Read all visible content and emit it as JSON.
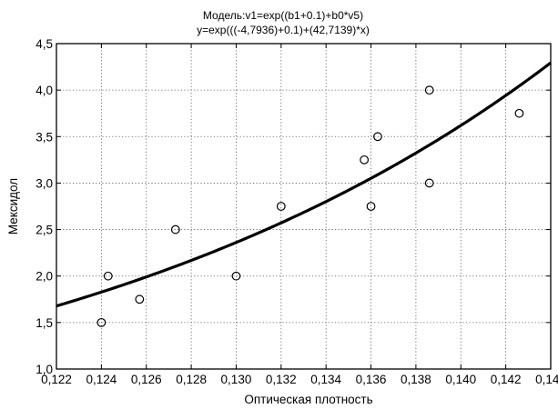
{
  "chart_data": {
    "type": "scatter",
    "title_lines": [
      "Модель:v1=exp((b1+0.1)+b0*v5)",
      "y=exp(((-4,7936)+0.1)+(42,7139)*x)"
    ],
    "xlabel": "Оптическая плотность",
    "ylabel": "Мексидол",
    "xlim": [
      0.122,
      0.144
    ],
    "ylim": [
      1.0,
      4.5
    ],
    "x_ticks": [
      0.122,
      0.124,
      0.126,
      0.128,
      0.13,
      0.132,
      0.134,
      0.136,
      0.138,
      0.14,
      0.142,
      0.144
    ],
    "x_tick_labels": [
      "0,122",
      "0,124",
      "0,126",
      "0,128",
      "0,130",
      "0,132",
      "0,134",
      "0,136",
      "0,138",
      "0,140",
      "0,142",
      "0,144"
    ],
    "y_ticks": [
      1.0,
      1.5,
      2.0,
      2.5,
      3.0,
      3.5,
      4.0,
      4.5
    ],
    "y_tick_labels": [
      "1,0",
      "1,5",
      "2,0",
      "2,5",
      "3,0",
      "3,5",
      "4,0",
      "4,5"
    ],
    "grid": true,
    "points": [
      {
        "x": 0.124,
        "y": 1.5
      },
      {
        "x": 0.1243,
        "y": 2.0
      },
      {
        "x": 0.1257,
        "y": 1.75
      },
      {
        "x": 0.1273,
        "y": 2.5
      },
      {
        "x": 0.13,
        "y": 2.0
      },
      {
        "x": 0.132,
        "y": 2.75
      },
      {
        "x": 0.1357,
        "y": 3.25
      },
      {
        "x": 0.136,
        "y": 2.75
      },
      {
        "x": 0.1363,
        "y": 3.5
      },
      {
        "x": 0.1386,
        "y": 4.0
      },
      {
        "x": 0.1386,
        "y": 3.0
      },
      {
        "x": 0.1426,
        "y": 3.75
      }
    ],
    "fit": {
      "model": "exponential",
      "intercept": -4.7936,
      "offset": 0.1,
      "slope": 42.7139
    }
  }
}
